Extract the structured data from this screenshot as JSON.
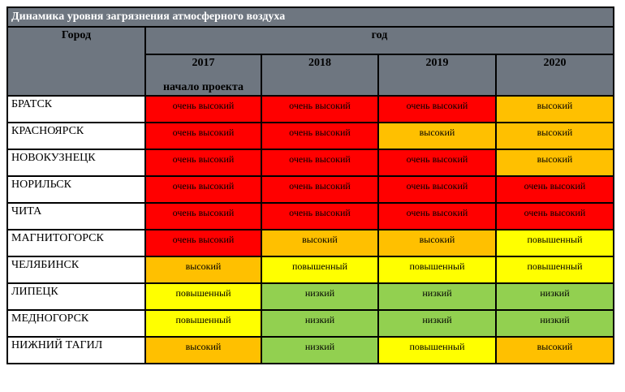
{
  "title": "Динамика уровня загрязнения атмосферного воздуха",
  "header": {
    "city_label": "Город",
    "year_group_label": "год",
    "years": [
      "2017",
      "2018",
      "2019",
      "2020"
    ],
    "year_2017_sub": "начало проекта"
  },
  "level_colors": {
    "очень высокий": "#ff0000",
    "высокий": "#ffc000",
    "повышенный": "#ffff00",
    "низкий": "#92d050"
  },
  "colors": {
    "header_bg": "#6e7680",
    "title_text": "#ffffff",
    "border": "#000000",
    "page_bg": "#ffffff"
  },
  "rows": [
    {
      "city": "БРАТСК",
      "values": [
        "очень высокий",
        "очень высокий",
        "очень высокий",
        "высокий"
      ]
    },
    {
      "city": "КРАСНОЯРСК",
      "values": [
        "очень высокий",
        "очень высокий",
        "высокий",
        "высокий"
      ]
    },
    {
      "city": "НОВОКУЗНЕЦК",
      "values": [
        "очень высокий",
        "очень высокий",
        "очень высокий",
        "высокий"
      ]
    },
    {
      "city": "НОРИЛЬСК",
      "values": [
        "очень высокий",
        "очень высокий",
        "очень высокий",
        "очень высокий"
      ]
    },
    {
      "city": "ЧИТА",
      "values": [
        "очень высокий",
        "очень высокий",
        "очень высокий",
        "очень высокий"
      ]
    },
    {
      "city": "МАГНИТОГОРСК",
      "values": [
        "очень высокий",
        "высокий",
        "высокий",
        "повышенный"
      ]
    },
    {
      "city": "ЧЕЛЯБИНСК",
      "values": [
        "высокий",
        "повышенный",
        "повышенный",
        "повышенный"
      ]
    },
    {
      "city": "ЛИПЕЦК",
      "values": [
        "повышенный",
        "низкий",
        "низкий",
        "низкий"
      ]
    },
    {
      "city": "МЕДНОГОРСК",
      "values": [
        "повышенный",
        "низкий",
        "низкий",
        "низкий"
      ]
    },
    {
      "city": "НИЖНИЙ ТАГИЛ",
      "values": [
        "высокий",
        "низкий",
        "повышенный",
        "высокий"
      ]
    }
  ]
}
